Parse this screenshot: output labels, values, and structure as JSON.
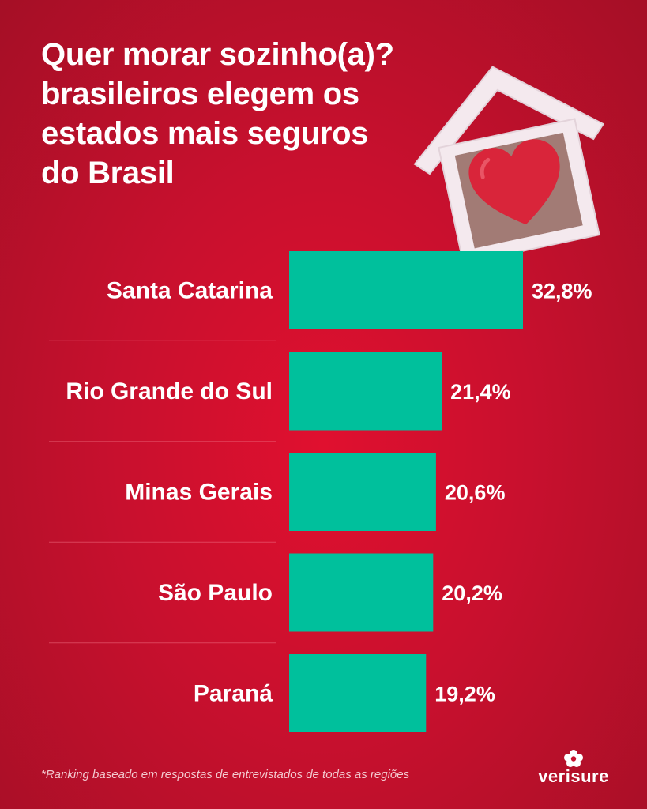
{
  "title_lines": [
    "Quer morar sozinho(a)?",
    "brasileiros elegem os",
    "estados mais seguros",
    "do Brasil"
  ],
  "colors": {
    "background": "#c8102e",
    "bar": "#00c09c",
    "text": "#ffffff"
  },
  "chart_data": {
    "type": "bar",
    "orientation": "horizontal",
    "categories": [
      "Santa Catarina",
      "Rio Grande do Sul",
      "Minas Gerais",
      "São Paulo",
      "Paraná"
    ],
    "values": [
      32.8,
      21.4,
      20.6,
      20.2,
      19.2
    ],
    "value_labels": [
      "32,8%",
      "21,4%",
      "20,6%",
      "20,2%",
      "19,2%"
    ],
    "xlim": [
      0,
      32.8
    ],
    "grid": false,
    "legend": "none"
  },
  "footnote": "*Ranking baseado em respostas de entrevistados de todas as regiões",
  "brand": {
    "name": "verisure",
    "icon": "verisure-flower-icon"
  },
  "illustration": {
    "icon": "house-heart-icon"
  }
}
